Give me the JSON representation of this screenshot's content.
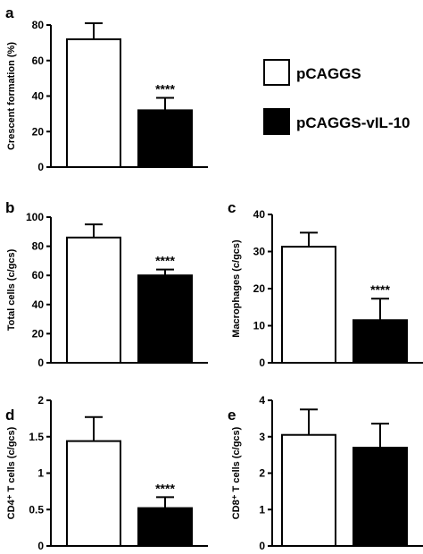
{
  "colors": {
    "control": "#ffffff",
    "treated": "#000000",
    "axis": "#000000"
  },
  "legend": [
    {
      "label": "pCAGGS",
      "color": "#ffffff"
    },
    {
      "label": "pCAGGS-vIL-10",
      "color": "#000000"
    }
  ],
  "chart_data": [
    {
      "panel": "a",
      "type": "bar",
      "ylabel": "Crescent formation (%)",
      "ylim": [
        0,
        80
      ],
      "yticks": [
        "0",
        "20",
        "40",
        "60",
        "80"
      ],
      "ytick_values": [
        0,
        20,
        40,
        60,
        80
      ],
      "series": [
        {
          "name": "pCAGGS",
          "value": 72,
          "error": 9
        },
        {
          "name": "pCAGGS-vIL-10",
          "value": 32,
          "error": 7,
          "annotation": "****"
        }
      ]
    },
    {
      "panel": "b",
      "type": "bar",
      "ylabel": "Total cells (c/gcs)",
      "ylim": [
        0,
        100
      ],
      "yticks": [
        "0",
        "20",
        "40",
        "60",
        "80",
        "100"
      ],
      "ytick_values": [
        0,
        20,
        40,
        60,
        80,
        100
      ],
      "series": [
        {
          "name": "pCAGGS",
          "value": 86,
          "error": 9
        },
        {
          "name": "pCAGGS-vIL-10",
          "value": 60,
          "error": 4,
          "annotation": "****"
        }
      ]
    },
    {
      "panel": "c",
      "type": "bar",
      "ylabel": "Macrophages (c/gcs)",
      "ylim": [
        0,
        40
      ],
      "yticks": [
        "0",
        "10",
        "20",
        "30",
        "40"
      ],
      "ytick_values": [
        0,
        10,
        20,
        30,
        40
      ],
      "series": [
        {
          "name": "pCAGGS",
          "value": 31.3,
          "error": 3.8
        },
        {
          "name": "pCAGGS-vIL-10",
          "value": 11.5,
          "error": 5.8,
          "annotation": "****"
        }
      ]
    },
    {
      "panel": "d",
      "type": "bar",
      "ylabel": "CD4⁺ T cells (c/gcs)",
      "ylim": [
        0,
        2
      ],
      "yticks": [
        "0",
        "0.5",
        "1",
        "1.5",
        "2"
      ],
      "ytick_values": [
        0,
        0.5,
        1,
        1.5,
        2
      ],
      "series": [
        {
          "name": "pCAGGS",
          "value": 1.44,
          "error": 0.33
        },
        {
          "name": "pCAGGS-vIL-10",
          "value": 0.52,
          "error": 0.15,
          "annotation": "****"
        }
      ]
    },
    {
      "panel": "e",
      "type": "bar",
      "ylabel": "CD8⁺ T cells (c/gcs)",
      "ylim": [
        0,
        4
      ],
      "yticks": [
        "0",
        "1",
        "2",
        "3",
        "4"
      ],
      "ytick_values": [
        0,
        1,
        2,
        3,
        4
      ],
      "series": [
        {
          "name": "pCAGGS",
          "value": 3.05,
          "error": 0.7
        },
        {
          "name": "pCAGGS-vIL-10",
          "value": 2.7,
          "error": 0.66
        }
      ]
    }
  ]
}
